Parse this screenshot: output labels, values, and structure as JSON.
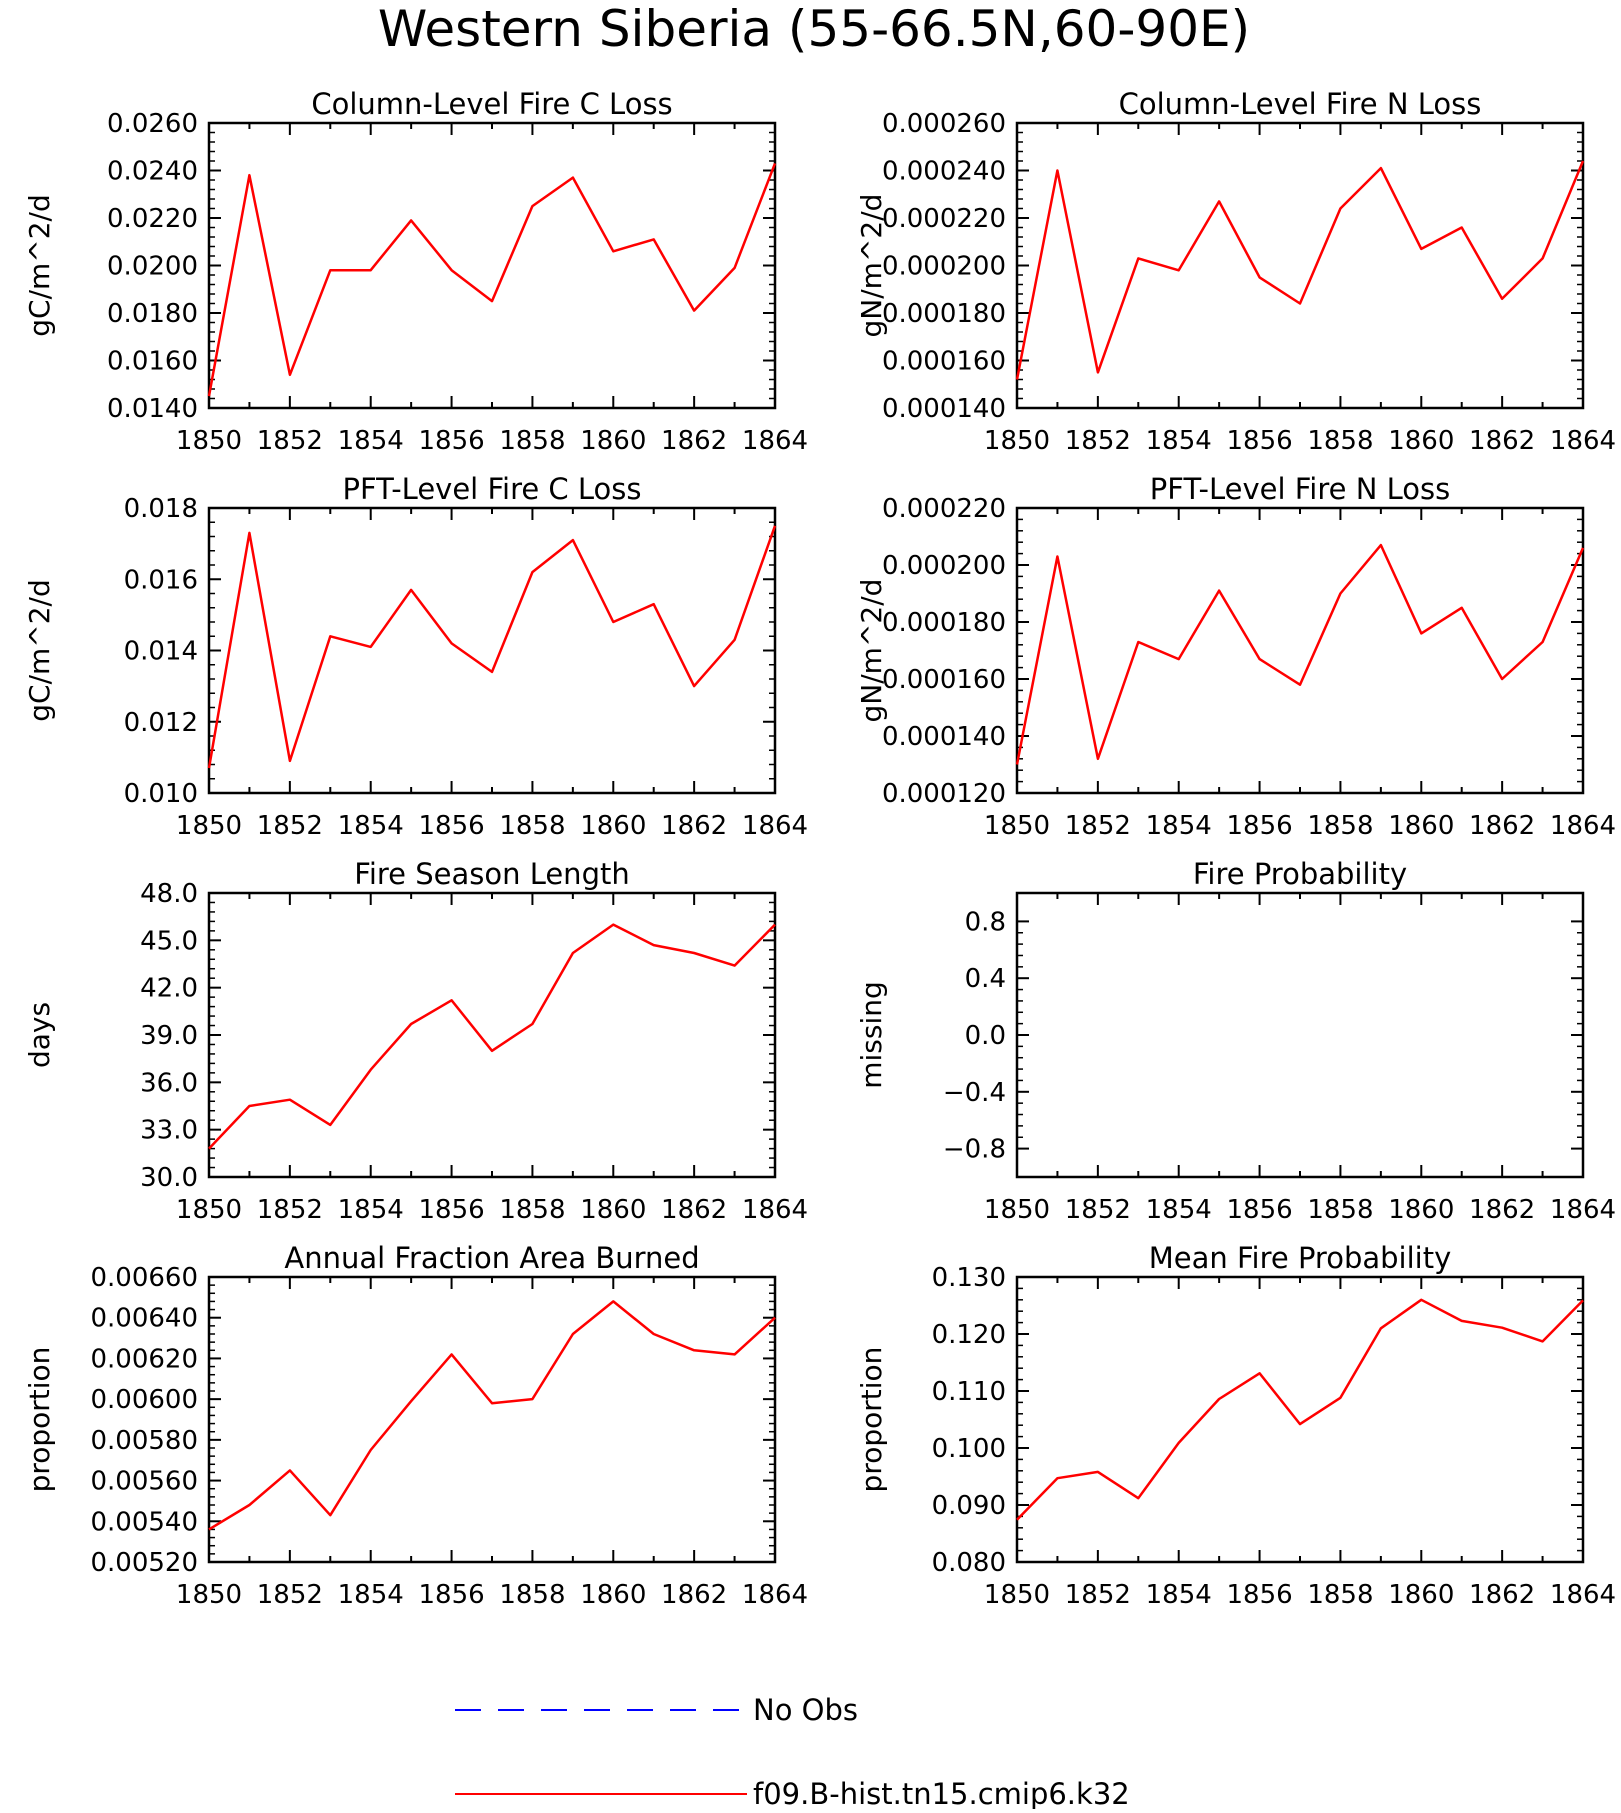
{
  "figure_title": "Western Siberia (55-66.5N,60-90E)",
  "legend": {
    "items": [
      {
        "label": "No Obs",
        "color": "#0000ff",
        "style": "dashed"
      },
      {
        "label": "f09.B-hist.tn15.cmip6.k32",
        "color": "#ff0000",
        "style": "solid"
      }
    ]
  },
  "colors": {
    "model_line": "#ff0000",
    "obs_line": "#0000ff"
  },
  "chart_data": [
    {
      "type": "line",
      "title": "Column-Level Fire C Loss",
      "xlabel": "",
      "ylabel": "gC/m^2/d",
      "xlim": [
        1850,
        1864
      ],
      "ylim": [
        0.014,
        0.026
      ],
      "yticks": [
        "0.0140",
        "0.0160",
        "0.0180",
        "0.0200",
        "0.0220",
        "0.0240",
        "0.0260"
      ],
      "xticks": [
        "1850",
        "1852",
        "1854",
        "1856",
        "1858",
        "1860",
        "1862",
        "1864"
      ],
      "x": [
        1850,
        1851,
        1852,
        1853,
        1854,
        1855,
        1856,
        1857,
        1858,
        1859,
        1860,
        1861,
        1862,
        1863,
        1864
      ],
      "series": [
        {
          "name": "f09.B-hist.tn15.cmip6.k32",
          "values": [
            0.0145,
            0.0238,
            0.0154,
            0.0198,
            0.0198,
            0.0219,
            0.0198,
            0.0185,
            0.0225,
            0.0237,
            0.0206,
            0.0211,
            0.0181,
            0.0199,
            0.0243
          ]
        }
      ]
    },
    {
      "type": "line",
      "title": "Column-Level Fire N Loss",
      "xlabel": "",
      "ylabel": "gN/m^2/d",
      "xlim": [
        1850,
        1864
      ],
      "ylim": [
        0.00014,
        0.00026
      ],
      "yticks": [
        "0.000140",
        "0.000160",
        "0.000180",
        "0.000200",
        "0.000220",
        "0.000240",
        "0.000260"
      ],
      "xticks": [
        "1850",
        "1852",
        "1854",
        "1856",
        "1858",
        "1860",
        "1862",
        "1864"
      ],
      "x": [
        1850,
        1851,
        1852,
        1853,
        1854,
        1855,
        1856,
        1857,
        1858,
        1859,
        1860,
        1861,
        1862,
        1863,
        1864
      ],
      "series": [
        {
          "name": "f09.B-hist.tn15.cmip6.k32",
          "values": [
            0.000152,
            0.00024,
            0.000155,
            0.000203,
            0.000198,
            0.000227,
            0.000195,
            0.000184,
            0.000224,
            0.000241,
            0.000207,
            0.000216,
            0.000186,
            0.000203,
            0.000244
          ]
        }
      ]
    },
    {
      "type": "line",
      "title": "PFT-Level Fire C Loss",
      "xlabel": "",
      "ylabel": "gC/m^2/d",
      "xlim": [
        1850,
        1864
      ],
      "ylim": [
        0.01,
        0.018
      ],
      "yticks": [
        "0.010",
        "0.012",
        "0.014",
        "0.016",
        "0.018"
      ],
      "xticks": [
        "1850",
        "1852",
        "1854",
        "1856",
        "1858",
        "1860",
        "1862",
        "1864"
      ],
      "x": [
        1850,
        1851,
        1852,
        1853,
        1854,
        1855,
        1856,
        1857,
        1858,
        1859,
        1860,
        1861,
        1862,
        1863,
        1864
      ],
      "series": [
        {
          "name": "f09.B-hist.tn15.cmip6.k32",
          "values": [
            0.0107,
            0.0173,
            0.0109,
            0.0144,
            0.0141,
            0.0157,
            0.0142,
            0.0134,
            0.0162,
            0.0171,
            0.0148,
            0.0153,
            0.013,
            0.0143,
            0.0175
          ]
        }
      ]
    },
    {
      "type": "line",
      "title": "PFT-Level Fire N Loss",
      "xlabel": "",
      "ylabel": "gN/m^2/d",
      "xlim": [
        1850,
        1864
      ],
      "ylim": [
        0.00012,
        0.00022
      ],
      "yticks": [
        "0.000120",
        "0.000140",
        "0.000160",
        "0.000180",
        "0.000200",
        "0.000220"
      ],
      "xticks": [
        "1850",
        "1852",
        "1854",
        "1856",
        "1858",
        "1860",
        "1862",
        "1864"
      ],
      "x": [
        1850,
        1851,
        1852,
        1853,
        1854,
        1855,
        1856,
        1857,
        1858,
        1859,
        1860,
        1861,
        1862,
        1863,
        1864
      ],
      "series": [
        {
          "name": "f09.B-hist.tn15.cmip6.k32",
          "values": [
            0.00013,
            0.000203,
            0.000132,
            0.000173,
            0.000167,
            0.000191,
            0.000167,
            0.000158,
            0.00019,
            0.000207,
            0.000176,
            0.000185,
            0.00016,
            0.000173,
            0.000206
          ]
        }
      ]
    },
    {
      "type": "line",
      "title": "Fire Season Length",
      "xlabel": "",
      "ylabel": "days",
      "xlim": [
        1850,
        1864
      ],
      "ylim": [
        30,
        48
      ],
      "yticks": [
        "30.0",
        "33.0",
        "36.0",
        "39.0",
        "42.0",
        "45.0",
        "48.0"
      ],
      "xticks": [
        "1850",
        "1852",
        "1854",
        "1856",
        "1858",
        "1860",
        "1862",
        "1864"
      ],
      "x": [
        1850,
        1851,
        1852,
        1853,
        1854,
        1855,
        1856,
        1857,
        1858,
        1859,
        1860,
        1861,
        1862,
        1863,
        1864
      ],
      "series": [
        {
          "name": "f09.B-hist.tn15.cmip6.k32",
          "values": [
            31.8,
            34.5,
            34.9,
            33.3,
            36.8,
            39.7,
            41.2,
            38.0,
            39.7,
            44.2,
            46.0,
            44.7,
            44.2,
            43.4,
            46.0
          ]
        }
      ]
    },
    {
      "type": "line",
      "title": "Fire Probability",
      "xlabel": "",
      "ylabel": "missing",
      "xlim": [
        1850,
        1864
      ],
      "ylim": [
        -1.0,
        1.0
      ],
      "yticks": [
        "-0.8",
        "-0.4",
        "0.0",
        "0.4",
        "0.8"
      ],
      "ytick_values": [
        -0.8,
        -0.4,
        0.0,
        0.4,
        0.8
      ],
      "xticks": [
        "1850",
        "1852",
        "1854",
        "1856",
        "1858",
        "1860",
        "1862",
        "1864"
      ],
      "x": [],
      "series": []
    },
    {
      "type": "line",
      "title": "Annual Fraction Area Burned",
      "xlabel": "",
      "ylabel": "proportion",
      "xlim": [
        1850,
        1864
      ],
      "ylim": [
        0.0052,
        0.0066
      ],
      "yticks": [
        "0.00520",
        "0.00540",
        "0.00560",
        "0.00580",
        "0.00600",
        "0.00620",
        "0.00640",
        "0.00660"
      ],
      "xticks": [
        "1850",
        "1852",
        "1854",
        "1856",
        "1858",
        "1860",
        "1862",
        "1864"
      ],
      "x": [
        1850,
        1851,
        1852,
        1853,
        1854,
        1855,
        1856,
        1857,
        1858,
        1859,
        1860,
        1861,
        1862,
        1863,
        1864
      ],
      "series": [
        {
          "name": "f09.B-hist.tn15.cmip6.k32",
          "values": [
            0.00536,
            0.00548,
            0.00565,
            0.00543,
            0.00575,
            0.00599,
            0.00622,
            0.00598,
            0.006,
            0.00632,
            0.00648,
            0.00632,
            0.00624,
            0.00622,
            0.0064
          ]
        }
      ]
    },
    {
      "type": "line",
      "title": "Mean Fire Probability",
      "xlabel": "",
      "ylabel": "proportion",
      "xlim": [
        1850,
        1864
      ],
      "ylim": [
        0.08,
        0.13
      ],
      "yticks": [
        "0.080",
        "0.090",
        "0.100",
        "0.110",
        "0.120",
        "0.130"
      ],
      "xticks": [
        "1850",
        "1852",
        "1854",
        "1856",
        "1858",
        "1860",
        "1862",
        "1864"
      ],
      "x": [
        1850,
        1851,
        1852,
        1853,
        1854,
        1855,
        1856,
        1857,
        1858,
        1859,
        1860,
        1861,
        1862,
        1863,
        1864
      ],
      "series": [
        {
          "name": "f09.B-hist.tn15.cmip6.k32",
          "values": [
            0.0874,
            0.0947,
            0.0958,
            0.0912,
            0.1009,
            0.1086,
            0.1131,
            0.1042,
            0.1088,
            0.121,
            0.126,
            0.1223,
            0.1211,
            0.1187,
            0.1259
          ]
        }
      ]
    }
  ]
}
